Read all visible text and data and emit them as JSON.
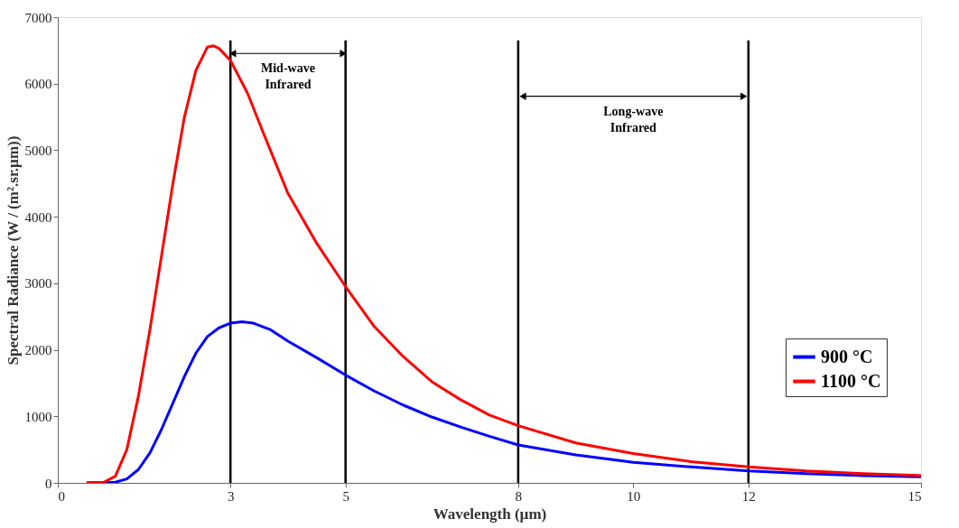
{
  "chart_data": {
    "type": "line",
    "xlabel": "Wavelength (µm)",
    "ylabel": "Spectral Radiance (W / (m².sr.µm))",
    "xlim": [
      0,
      15
    ],
    "xticks": [
      0,
      3,
      5,
      8,
      10,
      12,
      15
    ],
    "ylim": [
      0,
      7000
    ],
    "yticks": [
      0,
      1000,
      2000,
      3000,
      4000,
      5000,
      6000,
      7000
    ],
    "grid": false,
    "legend": "right",
    "marker": "none",
    "line_style": "solid",
    "series": [
      {
        "name": "900 °C",
        "color": "#0000ff",
        "x": [
          0.5,
          1.0,
          1.2,
          1.4,
          1.6,
          1.8,
          2.0,
          2.2,
          2.4,
          2.6,
          2.8,
          3.0,
          3.2,
          3.4,
          3.7,
          4.0,
          4.5,
          5.0,
          5.5,
          6.0,
          6.5,
          7.0,
          7.5,
          8.0,
          9.0,
          10.0,
          11.0,
          12.0,
          13.0,
          14.0,
          15.0
        ],
        "values": [
          0,
          10,
          60,
          200,
          450,
          800,
          1200,
          1600,
          1950,
          2200,
          2330,
          2400,
          2420,
          2400,
          2300,
          2130,
          1880,
          1620,
          1380,
          1170,
          990,
          840,
          700,
          570,
          420,
          310,
          240,
          180,
          140,
          110,
          90
        ]
      },
      {
        "name": "1100 °C",
        "color": "#ff0000",
        "x": [
          0.5,
          0.8,
          1.0,
          1.2,
          1.4,
          1.6,
          1.8,
          2.0,
          2.2,
          2.4,
          2.6,
          2.7,
          2.8,
          3.0,
          3.3,
          3.6,
          4.0,
          4.5,
          5.0,
          5.5,
          6.0,
          6.5,
          7.0,
          7.5,
          8.0,
          9.0,
          10.0,
          11.0,
          12.0,
          13.0,
          14.0,
          15.0
        ],
        "values": [
          0,
          10,
          100,
          500,
          1300,
          2300,
          3400,
          4500,
          5500,
          6200,
          6550,
          6570,
          6530,
          6350,
          5850,
          5200,
          4350,
          3600,
          2950,
          2350,
          1900,
          1520,
          1250,
          1020,
          860,
          600,
          440,
          320,
          240,
          180,
          140,
          110
        ]
      }
    ],
    "ref_lines": [
      {
        "axis": "x",
        "value": 3,
        "color": "#000000"
      },
      {
        "axis": "x",
        "value": 5,
        "color": "#000000"
      },
      {
        "axis": "x",
        "value": 8,
        "color": "#000000"
      },
      {
        "axis": "x",
        "value": 12,
        "color": "#000000"
      }
    ],
    "annotations": [
      "Mid-wave\nInfrared",
      "Long-wave\nInfrared"
    ]
  }
}
